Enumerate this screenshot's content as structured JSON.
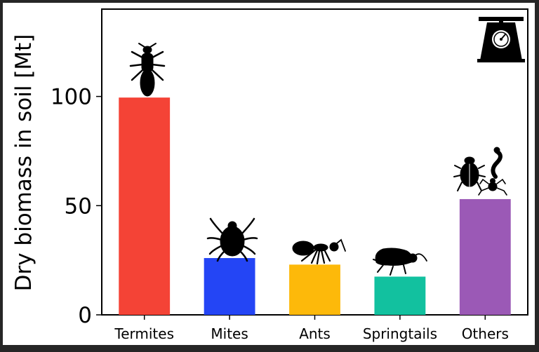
{
  "chart_data": {
    "type": "bar",
    "categories": [
      "Termites",
      "Mites",
      "Ants",
      "Springtails",
      "Others"
    ],
    "values": [
      99.5,
      26,
      23,
      17.5,
      53
    ],
    "colors": [
      "#f44336",
      "#2445f5",
      "#fdb90a",
      "#12c19f",
      "#9b59b6"
    ],
    "ylabel": "Dry biomass in soil [Mt]",
    "xlabel": "",
    "title": "",
    "ylim": [
      0,
      140
    ],
    "yticks": [
      0,
      50,
      100
    ],
    "grid": false,
    "icons": [
      "termite-icon",
      "mite-icon",
      "ant-icon",
      "springtail-icon",
      "beetle-spider-millipede-icon"
    ],
    "corner_icon": "weighing-scale-icon"
  }
}
